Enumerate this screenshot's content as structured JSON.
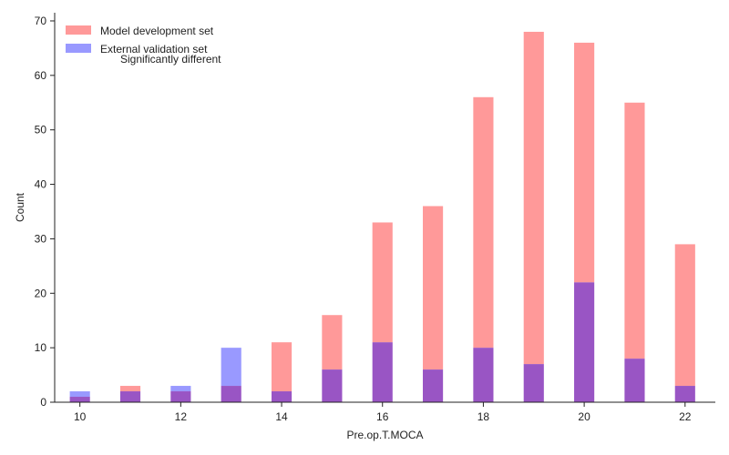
{
  "chart_data": {
    "type": "bar",
    "title": "",
    "xlabel": "Pre.op.T.MOCA",
    "ylabel": "Count",
    "xlim": [
      9.5,
      22.6
    ],
    "ylim": [
      0,
      71.5
    ],
    "xticks": [
      10,
      12,
      14,
      16,
      18,
      20,
      22
    ],
    "yticks": [
      0,
      10,
      20,
      30,
      40,
      50,
      60,
      70
    ],
    "x": [
      10,
      11,
      12,
      13,
      14,
      15,
      16,
      17,
      18,
      19,
      20,
      21,
      22
    ],
    "bin_width": 0.4,
    "series": [
      {
        "name": "Model development set",
        "color": "#ff9999",
        "values": [
          1,
          3,
          2,
          3,
          11,
          16,
          33,
          36,
          56,
          68,
          66,
          55,
          29
        ]
      },
      {
        "name": "External validation set",
        "color": "#9999ff",
        "values": [
          2,
          2,
          3,
          10,
          2,
          6,
          11,
          6,
          10,
          7,
          22,
          8,
          3
        ]
      }
    ],
    "overlap_color": "#9955c4",
    "legend": {
      "position": "top-left"
    },
    "annotation": "Significantly different",
    "grid": false
  }
}
